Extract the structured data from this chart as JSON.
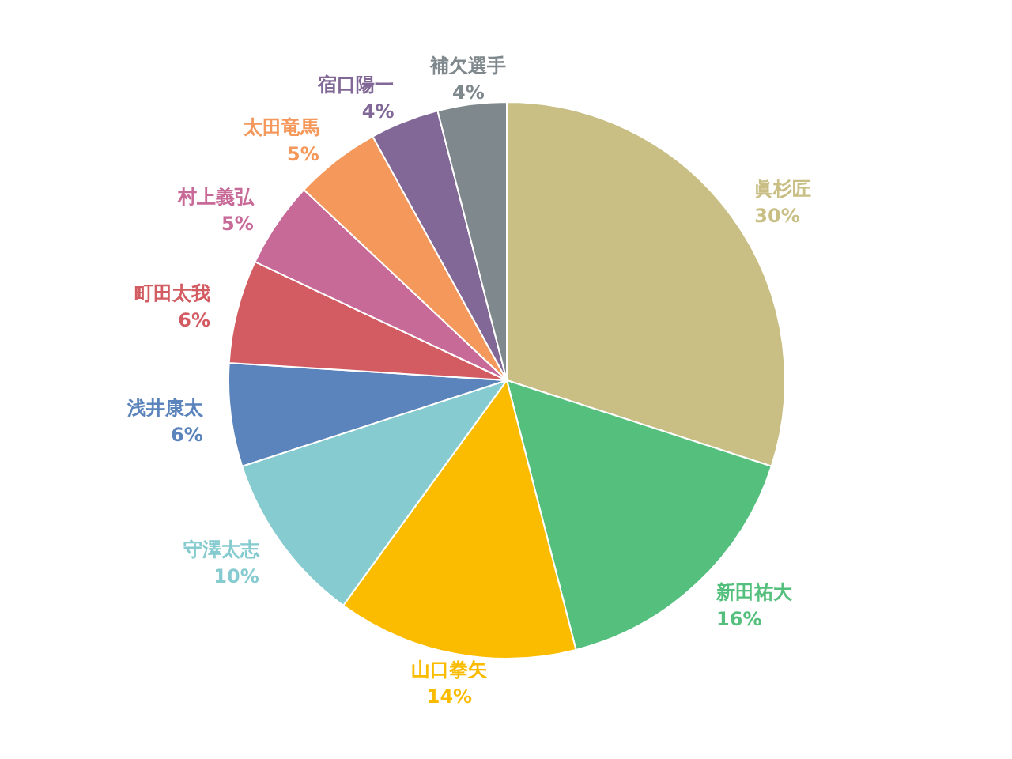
{
  "chart_data": {
    "type": "pie",
    "categories": [
      "眞杉匠",
      "新田祐大",
      "山口拳矢",
      "守澤太志",
      "浅井康太",
      "町田太我",
      "村上義弘",
      "太田竜馬",
      "宿口陽一",
      "補欠選手"
    ],
    "values": [
      30,
      16,
      14,
      10,
      6,
      6,
      5,
      5,
      4,
      4
    ],
    "colors": [
      "#c9bf85",
      "#55c07d",
      "#fbbc00",
      "#85cbcf",
      "#5b84bc",
      "#d35c62",
      "#c86a98",
      "#f4985c",
      "#816896",
      "#7f888c"
    ],
    "value_labels": [
      "30%",
      "16%",
      "14%",
      "10%",
      "6%",
      "6%",
      "5%",
      "5%",
      "4%",
      "4%"
    ]
  }
}
